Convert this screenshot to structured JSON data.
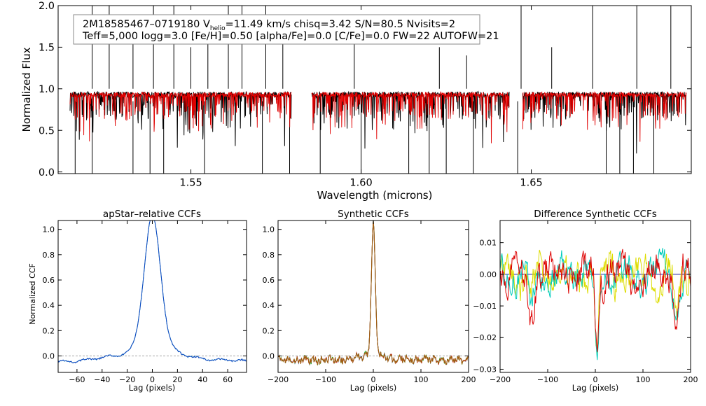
{
  "chart_data": [
    {
      "type": "line",
      "id": "spectrum",
      "ylabel": "Normalized Flux",
      "xlabel": "Wavelength (microns)",
      "xlim": [
        1.511,
        1.697
      ],
      "ylim": [
        -0.02,
        2.0
      ],
      "xticks": [
        1.55,
        1.6,
        1.65
      ],
      "xtick_labels": [
        "1.55",
        "1.60",
        "1.65"
      ],
      "yticks": [
        0.0,
        0.5,
        1.0,
        1.5,
        2.0
      ],
      "ytick_labels": [
        "0.0",
        "0.5",
        "1.0",
        "1.5",
        "2.0"
      ],
      "legend": {
        "line1_pre": "2M18585467–0719180  V",
        "line1_sub": "helio",
        "line1_post": "=11.49 km/s  chisq=3.42  S/N=80.5  Nvisits=2",
        "line2": "Teff=5,000 logg=3.0 [Fe/H]=0.50 [alpha/Fe]=0.0 [C/Fe]=0.0 FW=22 AUTOFW=21"
      },
      "chips": [
        [
          1.5145,
          1.5795
        ],
        [
          1.5855,
          1.6435
        ],
        [
          1.6475,
          1.6955
        ]
      ],
      "series": [
        {
          "name": "observed",
          "color": "#000000",
          "baseline": 0.93,
          "noise": 0.035
        },
        {
          "name": "model",
          "color": "#e00000",
          "baseline": 0.93,
          "noise": 0.03
        }
      ],
      "low_spikes": [
        1.516,
        1.521,
        1.533,
        1.538,
        1.542,
        1.554,
        1.571,
        1.579,
        1.588,
        1.6,
        1.614,
        1.62,
        1.625,
        1.633,
        1.646,
        1.672,
        1.676,
        1.68,
        1.686
      ],
      "high_spikes": [
        {
          "x": 1.521,
          "y": 2.0
        },
        {
          "x": 1.526,
          "y": 2.0
        },
        {
          "x": 1.533,
          "y": 1.8
        },
        {
          "x": 1.539,
          "y": 2.0
        },
        {
          "x": 1.545,
          "y": 2.0
        },
        {
          "x": 1.55,
          "y": 1.5
        },
        {
          "x": 1.555,
          "y": 1.8
        },
        {
          "x": 1.561,
          "y": 2.0
        },
        {
          "x": 1.565,
          "y": 2.0
        },
        {
          "x": 1.572,
          "y": 2.0
        },
        {
          "x": 1.577,
          "y": 1.7
        },
        {
          "x": 1.598,
          "y": 1.6
        },
        {
          "x": 1.623,
          "y": 1.5
        },
        {
          "x": 1.631,
          "y": 1.4
        },
        {
          "x": 1.647,
          "y": 2.0
        },
        {
          "x": 1.656,
          "y": 1.5
        },
        {
          "x": 1.668,
          "y": 2.0
        },
        {
          "x": 1.681,
          "y": 2.0
        },
        {
          "x": 1.691,
          "y": 2.0
        }
      ]
    },
    {
      "type": "line",
      "id": "ccf_apstar",
      "title": "apStar–relative CCFs",
      "xlabel": "Lag (pixels)",
      "ylabel": "Normalized CCF",
      "xlim": [
        -75,
        75
      ],
      "ylim": [
        -0.13,
        1.07
      ],
      "xticks": [
        -60,
        -40,
        -20,
        0,
        20,
        40,
        60
      ],
      "xtick_labels": [
        "−60",
        "−40",
        "−20",
        "0",
        "20",
        "40",
        "60"
      ],
      "yticks": [
        0.0,
        0.2,
        0.4,
        0.6,
        0.8,
        1.0
      ],
      "ytick_labels": [
        "0.0",
        "0.2",
        "0.4",
        "0.6",
        "0.8",
        "1.0"
      ],
      "peak": 1.0,
      "width": 6.5,
      "series": [
        {
          "name": "visit 1",
          "color": "#00bbbb"
        },
        {
          "name": "visit 2",
          "color": "#1040c0"
        }
      ]
    },
    {
      "type": "line",
      "id": "ccf_synth",
      "title": "Synthetic CCFs",
      "xlabel": "Lag (pixels)",
      "xlim": [
        -200,
        200
      ],
      "ylim": [
        -0.13,
        1.07
      ],
      "xticks": [
        -200,
        -100,
        0,
        100,
        200
      ],
      "xtick_labels": [
        "−200",
        "−100",
        "0",
        "100",
        "200"
      ],
      "yticks": [
        0.0,
        0.2,
        0.4,
        0.6,
        0.8,
        1.0
      ],
      "ytick_labels": [
        "0.0",
        "0.2",
        "0.4",
        "0.6",
        "0.8",
        "1.0"
      ],
      "peak": 1.0,
      "width": 4,
      "series": [
        {
          "name": "synthetic 1",
          "color": "#1040c0"
        },
        {
          "name": "synthetic 2",
          "color": "#00bb00"
        },
        {
          "name": "synthetic 3",
          "color": "#dd2020"
        },
        {
          "name": "synthetic 4",
          "color": "#a06010"
        }
      ]
    },
    {
      "type": "line",
      "id": "ccf_diff",
      "title": "Difference Synthetic CCFs",
      "xlabel": "Lag (pixels)",
      "xlim": [
        -200,
        200
      ],
      "ylim": [
        -0.031,
        0.017
      ],
      "xticks": [
        -200,
        -100,
        0,
        100,
        200
      ],
      "xtick_labels": [
        "−200",
        "−100",
        "0",
        "100",
        "200"
      ],
      "yticks": [
        -0.03,
        -0.02,
        -0.01,
        0.0,
        0.01
      ],
      "ytick_labels": [
        "−0.03",
        "−0.02",
        "−0.01",
        "0.00",
        "0.01"
      ],
      "zero_line_color": "#2020a0",
      "series": [
        {
          "name": "difference 1",
          "color": "#dddd00"
        },
        {
          "name": "difference 2",
          "color": "#00ccbb"
        },
        {
          "name": "difference 3",
          "color": "#dd0000"
        }
      ]
    }
  ]
}
